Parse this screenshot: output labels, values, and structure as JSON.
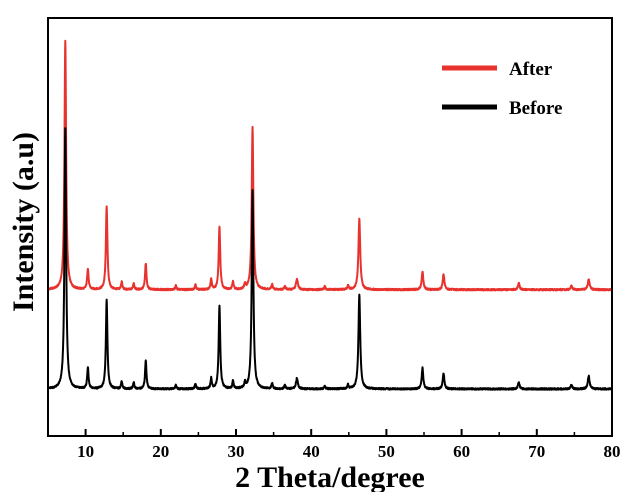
{
  "chart_data": {
    "type": "line",
    "title": "",
    "xlabel": "2 Theta/degree",
    "ylabel": "Intensity (a.u)",
    "xlim": [
      5,
      80
    ],
    "xticks": [
      10,
      20,
      30,
      40,
      50,
      60,
      70,
      80
    ],
    "grid": false,
    "legend_position": "top-right",
    "series": [
      {
        "name": "After",
        "color": "#e8322e",
        "baseline": 0.38,
        "peaks": [
          {
            "x": 7.3,
            "h": 0.95,
            "w": 0.26
          },
          {
            "x": 10.3,
            "h": 0.08,
            "w": 0.22
          },
          {
            "x": 12.8,
            "h": 0.32,
            "w": 0.24
          },
          {
            "x": 14.8,
            "h": 0.03,
            "w": 0.2
          },
          {
            "x": 16.4,
            "h": 0.025,
            "w": 0.2
          },
          {
            "x": 18.0,
            "h": 0.1,
            "w": 0.22
          },
          {
            "x": 22.0,
            "h": 0.015,
            "w": 0.2
          },
          {
            "x": 24.6,
            "h": 0.02,
            "w": 0.2
          },
          {
            "x": 26.7,
            "h": 0.04,
            "w": 0.2
          },
          {
            "x": 27.8,
            "h": 0.24,
            "w": 0.24
          },
          {
            "x": 29.6,
            "h": 0.03,
            "w": 0.2
          },
          {
            "x": 31.2,
            "h": 0.02,
            "w": 0.2
          },
          {
            "x": 32.2,
            "h": 0.62,
            "w": 0.26
          },
          {
            "x": 34.8,
            "h": 0.02,
            "w": 0.2
          },
          {
            "x": 36.5,
            "h": 0.015,
            "w": 0.2
          },
          {
            "x": 38.1,
            "h": 0.04,
            "w": 0.3
          },
          {
            "x": 41.8,
            "h": 0.012,
            "w": 0.2
          },
          {
            "x": 44.9,
            "h": 0.015,
            "w": 0.2
          },
          {
            "x": 46.4,
            "h": 0.27,
            "w": 0.28
          },
          {
            "x": 54.8,
            "h": 0.07,
            "w": 0.25
          },
          {
            "x": 57.6,
            "h": 0.06,
            "w": 0.25
          },
          {
            "x": 67.6,
            "h": 0.025,
            "w": 0.25
          },
          {
            "x": 74.6,
            "h": 0.015,
            "w": 0.25
          },
          {
            "x": 76.9,
            "h": 0.04,
            "w": 0.28
          }
        ]
      },
      {
        "name": "Before",
        "color": "#000000",
        "baseline": 0.0,
        "peaks": [
          {
            "x": 7.3,
            "h": 1.0,
            "w": 0.26
          },
          {
            "x": 10.3,
            "h": 0.08,
            "w": 0.22
          },
          {
            "x": 12.8,
            "h": 0.34,
            "w": 0.24
          },
          {
            "x": 14.8,
            "h": 0.03,
            "w": 0.2
          },
          {
            "x": 16.4,
            "h": 0.025,
            "w": 0.2
          },
          {
            "x": 18.0,
            "h": 0.11,
            "w": 0.22
          },
          {
            "x": 22.0,
            "h": 0.015,
            "w": 0.2
          },
          {
            "x": 24.6,
            "h": 0.02,
            "w": 0.2
          },
          {
            "x": 26.7,
            "h": 0.04,
            "w": 0.2
          },
          {
            "x": 27.8,
            "h": 0.32,
            "w": 0.24
          },
          {
            "x": 29.6,
            "h": 0.03,
            "w": 0.2
          },
          {
            "x": 31.2,
            "h": 0.02,
            "w": 0.2
          },
          {
            "x": 32.2,
            "h": 0.76,
            "w": 0.26
          },
          {
            "x": 34.8,
            "h": 0.02,
            "w": 0.2
          },
          {
            "x": 36.5,
            "h": 0.015,
            "w": 0.2
          },
          {
            "x": 38.1,
            "h": 0.04,
            "w": 0.3
          },
          {
            "x": 41.8,
            "h": 0.012,
            "w": 0.2
          },
          {
            "x": 44.9,
            "h": 0.015,
            "w": 0.2
          },
          {
            "x": 46.4,
            "h": 0.36,
            "w": 0.28
          },
          {
            "x": 54.8,
            "h": 0.08,
            "w": 0.25
          },
          {
            "x": 57.6,
            "h": 0.06,
            "w": 0.25
          },
          {
            "x": 67.6,
            "h": 0.025,
            "w": 0.25
          },
          {
            "x": 74.6,
            "h": 0.015,
            "w": 0.25
          },
          {
            "x": 76.9,
            "h": 0.05,
            "w": 0.28
          }
        ]
      }
    ]
  }
}
